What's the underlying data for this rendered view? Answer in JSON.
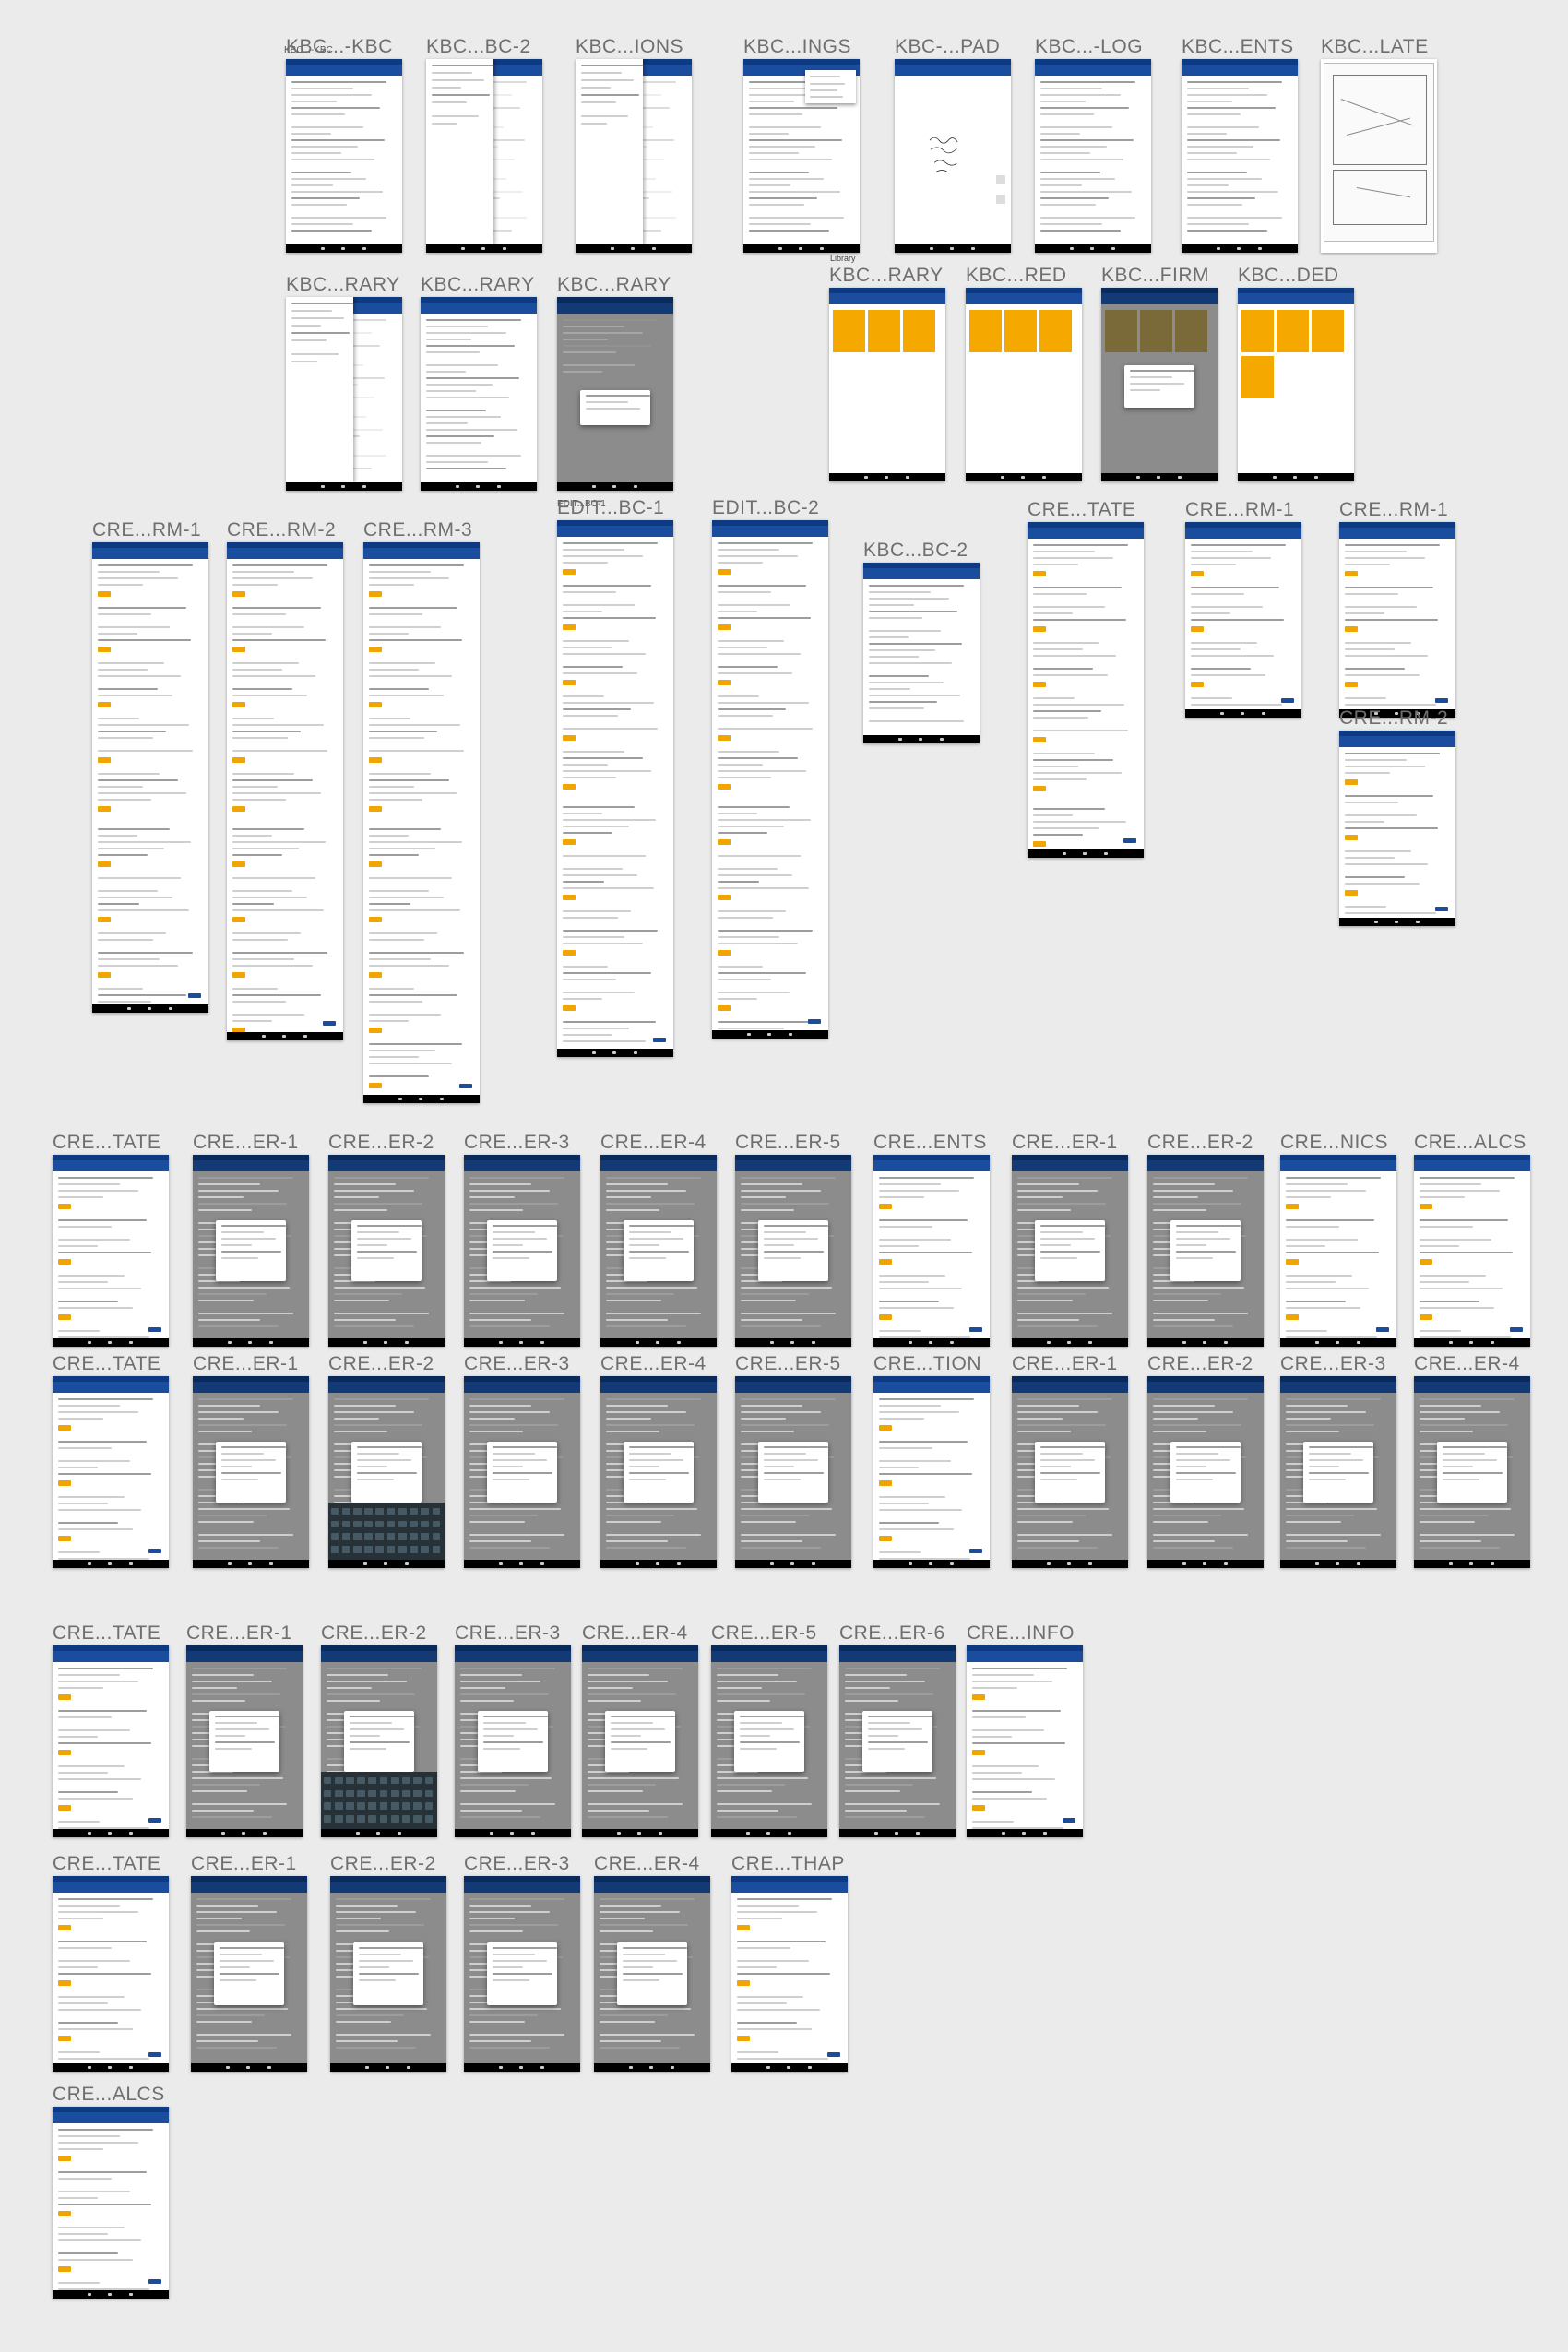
{
  "board": {
    "background": "#ebebeb",
    "colors": {
      "primary": "#1a4d9e",
      "status_bar": "#0d3a80",
      "accent": "#f0a500",
      "tile": "#f5a800",
      "scrim": "#8c8c8c"
    },
    "stray_labels": [
      "KBC...-KBC",
      "Library",
      "EDIT...BC-1"
    ]
  },
  "artboards": [
    {
      "label": "KBC...-KBC",
      "kind": "detail"
    },
    {
      "label": "KBC...BC-2",
      "kind": "drawer"
    },
    {
      "label": "KBC...IONS",
      "kind": "drawer"
    },
    {
      "label": "KBC...INGS",
      "kind": "menu"
    },
    {
      "label": "KBC-...PAD",
      "kind": "notepad"
    },
    {
      "label": "KBC...-LOG",
      "kind": "log"
    },
    {
      "label": "KBC...ENTS",
      "kind": "list"
    },
    {
      "label": "KBC...LATE",
      "kind": "plate"
    },
    {
      "label": "KBC...RARY",
      "kind": "drawer"
    },
    {
      "label": "KBC...RARY",
      "kind": "list"
    },
    {
      "label": "KBC...RARY",
      "kind": "overlay"
    },
    {
      "label": "KBC...RARY",
      "kind": "tiles"
    },
    {
      "label": "KBC...RED",
      "kind": "tiles"
    },
    {
      "label": "KBC...FIRM",
      "kind": "tiles-dialog"
    },
    {
      "label": "KBC...DED",
      "kind": "tiles"
    },
    {
      "label": "CRE...RM-1",
      "kind": "form"
    },
    {
      "label": "CRE...RM-2",
      "kind": "form"
    },
    {
      "label": "CRE...RM-3",
      "kind": "form"
    },
    {
      "label": "EDIT...BC-1",
      "kind": "form"
    },
    {
      "label": "EDIT...BC-2",
      "kind": "form"
    },
    {
      "label": "KBC...BC-2",
      "kind": "detail"
    },
    {
      "label": "CRE...TATE",
      "kind": "form"
    },
    {
      "label": "CRE...RM-1",
      "kind": "form"
    },
    {
      "label": "CRE...RM-1",
      "kind": "form"
    },
    {
      "label": "CRE...RM-2",
      "kind": "form"
    },
    {
      "label": "CRE...TATE",
      "kind": "form"
    },
    {
      "label": "CRE...ER-1",
      "kind": "dialog"
    },
    {
      "label": "CRE...ER-2",
      "kind": "dialog"
    },
    {
      "label": "CRE...ER-3",
      "kind": "dialog"
    },
    {
      "label": "CRE...ER-4",
      "kind": "dialog"
    },
    {
      "label": "CRE...ER-5",
      "kind": "dialog"
    },
    {
      "label": "CRE...ENTS",
      "kind": "form"
    },
    {
      "label": "CRE...ER-1",
      "kind": "dialog"
    },
    {
      "label": "CRE...ER-2",
      "kind": "dialog"
    },
    {
      "label": "CRE...NICS",
      "kind": "form"
    },
    {
      "label": "CRE...ALCS",
      "kind": "form"
    },
    {
      "label": "CRE...TATE",
      "kind": "form"
    },
    {
      "label": "CRE...ER-1",
      "kind": "dialog"
    },
    {
      "label": "CRE...ER-2",
      "kind": "keyboard"
    },
    {
      "label": "CRE...ER-3",
      "kind": "dialog"
    },
    {
      "label": "CRE...ER-4",
      "kind": "dialog"
    },
    {
      "label": "CRE...ER-5",
      "kind": "dialog"
    },
    {
      "label": "CRE...TION",
      "kind": "form"
    },
    {
      "label": "CRE...ER-1",
      "kind": "dialog"
    },
    {
      "label": "CRE...ER-2",
      "kind": "dialog"
    },
    {
      "label": "CRE...ER-3",
      "kind": "dialog"
    },
    {
      "label": "CRE...ER-4",
      "kind": "dialog"
    },
    {
      "label": "CRE...TATE",
      "kind": "form"
    },
    {
      "label": "CRE...ER-1",
      "kind": "dialog"
    },
    {
      "label": "CRE...ER-2",
      "kind": "keyboard"
    },
    {
      "label": "CRE...ER-3",
      "kind": "dialog"
    },
    {
      "label": "CRE...ER-4",
      "kind": "dialog"
    },
    {
      "label": "CRE...ER-5",
      "kind": "dialog"
    },
    {
      "label": "CRE...ER-6",
      "kind": "dialog"
    },
    {
      "label": "CRE...INFO",
      "kind": "form"
    },
    {
      "label": "CRE...TATE",
      "kind": "form"
    },
    {
      "label": "CRE...ER-1",
      "kind": "dialog"
    },
    {
      "label": "CRE...ER-2",
      "kind": "dialog"
    },
    {
      "label": "CRE...ER-3",
      "kind": "dialog"
    },
    {
      "label": "CRE...ER-4",
      "kind": "dialog"
    },
    {
      "label": "CRE...THAP",
      "kind": "form"
    },
    {
      "label": "CRE...ALCS",
      "kind": "form"
    }
  ]
}
